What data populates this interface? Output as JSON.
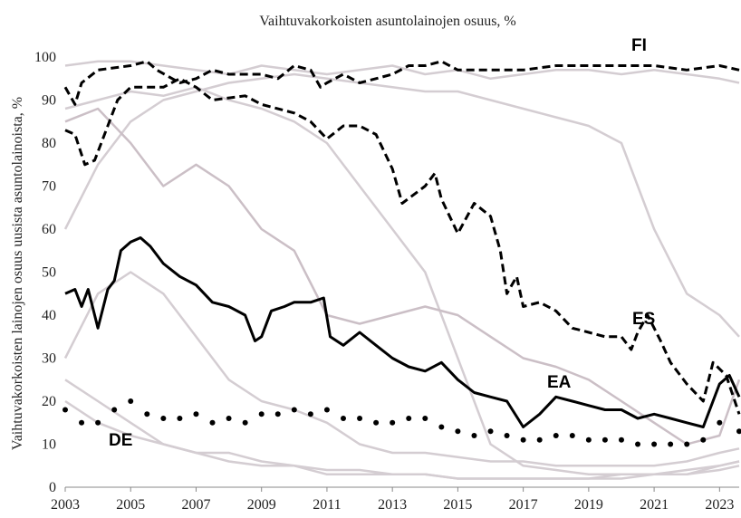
{
  "chart_data": {
    "type": "line",
    "title": "Vaihtuvakorkoisten asuntolainojen osuus, %",
    "ylabel": "Vaihtuvakorkoisten lainojen osuus uusista asuntolainoista, %",
    "xlim": [
      2003,
      2023.6
    ],
    "xticks": [
      2003,
      2005,
      2007,
      2009,
      2011,
      2013,
      2015,
      2017,
      2019,
      2021,
      2023
    ],
    "ylim": [
      0,
      100
    ],
    "yticks": [
      0,
      10,
      20,
      30,
      40,
      50,
      60,
      70,
      80,
      90,
      100
    ],
    "grid": false,
    "series": [
      {
        "color": "#d4cdd2",
        "style": "solid",
        "x": [
          2003,
          2004,
          2005,
          2006,
          2007,
          2008,
          2009,
          2010,
          2011,
          2012,
          2013,
          2014,
          2015,
          2016,
          2017,
          2018,
          2019,
          2020,
          2021,
          2022,
          2023,
          2023.6
        ],
        "values": [
          98,
          99,
          99,
          98,
          97,
          96,
          98,
          97,
          96,
          97,
          98,
          96,
          97,
          95,
          96,
          97,
          97,
          96,
          97,
          96,
          95,
          94
        ]
      },
      {
        "color": "#d4cdd2",
        "style": "solid",
        "x": [
          2003,
          2004,
          2005,
          2006,
          2007,
          2008,
          2009,
          2010,
          2011,
          2012,
          2013,
          2014,
          2015,
          2016,
          2017,
          2018,
          2019,
          2020,
          2021,
          2022,
          2023,
          2023.6
        ],
        "values": [
          88,
          90,
          92,
          91,
          93,
          90,
          88,
          85,
          80,
          70,
          60,
          50,
          30,
          10,
          5,
          4,
          3,
          3,
          3,
          3,
          4,
          5
        ]
      },
      {
        "color": "#d4cdd2",
        "style": "solid",
        "x": [
          2003,
          2004,
          2005,
          2006,
          2007,
          2008,
          2009,
          2010,
          2011,
          2012,
          2013,
          2014,
          2015,
          2016,
          2017,
          2018,
          2019,
          2020,
          2021,
          2022,
          2023,
          2023.6
        ],
        "values": [
          20,
          15,
          12,
          10,
          8,
          6,
          5,
          5,
          4,
          4,
          3,
          3,
          2,
          2,
          2,
          2,
          2,
          3,
          3,
          3,
          5,
          6
        ]
      },
      {
        "color": "#d4cdd2",
        "style": "solid",
        "x": [
          2003,
          2004,
          2005,
          2006,
          2007,
          2008,
          2009,
          2010,
          2011,
          2012,
          2013,
          2014,
          2015,
          2016,
          2017,
          2018,
          2019,
          2020,
          2021,
          2022,
          2023,
          2023.6
        ],
        "values": [
          60,
          75,
          85,
          90,
          92,
          94,
          95,
          96,
          95,
          94,
          93,
          92,
          92,
          90,
          88,
          86,
          84,
          80,
          60,
          45,
          40,
          35
        ]
      },
      {
        "color": "#d4cdd2",
        "style": "solid",
        "x": [
          2003,
          2004,
          2005,
          2006,
          2007,
          2008,
          2009,
          2010,
          2011,
          2012,
          2013,
          2014,
          2015,
          2016,
          2017,
          2018,
          2019,
          2020,
          2021,
          2022,
          2023,
          2023.6
        ],
        "values": [
          30,
          45,
          50,
          45,
          35,
          25,
          20,
          18,
          15,
          10,
          8,
          8,
          7,
          6,
          6,
          5,
          5,
          5,
          5,
          6,
          8,
          9
        ]
      },
      {
        "color": "#cbbfc6",
        "style": "solid",
        "x": [
          2003,
          2004,
          2005,
          2006,
          2007,
          2008,
          2009,
          2010,
          2011,
          2012,
          2013,
          2014,
          2015,
          2016,
          2017,
          2018,
          2019,
          2020,
          2021,
          2022,
          2023,
          2023.6
        ],
        "values": [
          85,
          88,
          80,
          70,
          75,
          70,
          60,
          55,
          40,
          38,
          40,
          42,
          40,
          35,
          30,
          28,
          25,
          20,
          15,
          10,
          12,
          25
        ]
      },
      {
        "color": "#d4cdd2",
        "style": "solid",
        "x": [
          2003,
          2004,
          2005,
          2006,
          2007,
          2008,
          2009,
          2010,
          2011,
          2012,
          2013,
          2014,
          2015,
          2016,
          2017,
          2018,
          2019,
          2020,
          2021,
          2022,
          2023,
          2023.6
        ],
        "values": [
          25,
          20,
          15,
          10,
          8,
          8,
          6,
          5,
          3,
          3,
          3,
          3,
          2,
          2,
          2,
          2,
          2,
          2,
          3,
          4,
          5,
          6
        ]
      },
      {
        "name": "FI",
        "color": "#000000",
        "style": "dashed",
        "x": [
          2003,
          2003.3,
          2003.5,
          2004,
          2005,
          2005.5,
          2005.8,
          2006.5,
          2007,
          2007.5,
          2008,
          2009,
          2009.5,
          2010,
          2010.5,
          2010.8,
          2011,
          2011.5,
          2012,
          2012.5,
          2013,
          2013.5,
          2014,
          2014.5,
          2015,
          2016,
          2017,
          2018,
          2019,
          2020,
          2021,
          2022,
          2023,
          2023.6
        ],
        "values": [
          93,
          89,
          94,
          97,
          98,
          99,
          97,
          94,
          95,
          97,
          96,
          96,
          95,
          98,
          97,
          93,
          94,
          96,
          94,
          95,
          96,
          98,
          98,
          99,
          97,
          97,
          97,
          98,
          98,
          98,
          98,
          97,
          98,
          97
        ]
      },
      {
        "name": "ES",
        "color": "#000000",
        "style": "dashed",
        "x": [
          2003,
          2003.3,
          2003.6,
          2003.9,
          2004.3,
          2004.6,
          2005,
          2006,
          2006.5,
          2007,
          2007.5,
          2008.5,
          2009,
          2010,
          2010.5,
          2011,
          2011.5,
          2012,
          2012.5,
          2013,
          2013.3,
          2014,
          2014.3,
          2014.5,
          2015,
          2015.5,
          2016,
          2016.3,
          2016.5,
          2016.8,
          2017,
          2017.5,
          2018,
          2018.5,
          2019,
          2019.5,
          2020,
          2020.3,
          2020.5,
          2020.8,
          2021.2,
          2021.5,
          2022,
          2022.5,
          2022.8,
          2023.2,
          2023.6
        ],
        "values": [
          83,
          82,
          75,
          76,
          84,
          90,
          93,
          93,
          95,
          93,
          90,
          91,
          89,
          87,
          85,
          81,
          84,
          84,
          82,
          74,
          66,
          70,
          73,
          67,
          59,
          66,
          63,
          55,
          45,
          49,
          42,
          43,
          41,
          37,
          36,
          35,
          35,
          32,
          36,
          40,
          34,
          29,
          24,
          20,
          29,
          26,
          17
        ]
      },
      {
        "name": "EA",
        "color": "#000000",
        "style": "solid",
        "x": [
          2003,
          2003.3,
          2003.5,
          2003.7,
          2004,
          2004.3,
          2004.5,
          2004.7,
          2005,
          2005.3,
          2005.6,
          2006,
          2006.5,
          2007,
          2007.5,
          2008,
          2008.5,
          2008.8,
          2009,
          2009.3,
          2009.7,
          2010,
          2010.5,
          2010.9,
          2011.1,
          2011.5,
          2012,
          2012.5,
          2013,
          2013.5,
          2014,
          2014.5,
          2015,
          2015.5,
          2016,
          2016.5,
          2017,
          2017.5,
          2018,
          2018.5,
          2019,
          2019.5,
          2020,
          2020.5,
          2021,
          2021.5,
          2022,
          2022.5,
          2022.8,
          2023,
          2023.3,
          2023.6
        ],
        "values": [
          45,
          46,
          42,
          46,
          37,
          46,
          48,
          55,
          57,
          58,
          56,
          52,
          49,
          47,
          43,
          42,
          40,
          34,
          35,
          41,
          42,
          43,
          43,
          44,
          35,
          33,
          36,
          33,
          30,
          28,
          27,
          29,
          25,
          22,
          21,
          20,
          14,
          17,
          21,
          20,
          19,
          18,
          18,
          16,
          17,
          16,
          15,
          14,
          20,
          24,
          26,
          21
        ]
      },
      {
        "name": "DE",
        "color": "#000000",
        "style": "dotted",
        "x": [
          2003,
          2003.5,
          2004,
          2004.5,
          2005,
          2005.5,
          2006,
          2006.5,
          2007,
          2007.5,
          2008,
          2008.5,
          2009,
          2009.5,
          2010,
          2010.5,
          2011,
          2011.5,
          2012,
          2012.5,
          2013,
          2013.5,
          2014,
          2014.5,
          2015,
          2015.5,
          2016,
          2016.5,
          2017,
          2017.5,
          2018,
          2018.5,
          2019,
          2019.5,
          2020,
          2020.5,
          2021,
          2021.5,
          2022,
          2022.5,
          2023,
          2023.6
        ],
        "values": [
          18,
          15,
          15,
          18,
          20,
          17,
          16,
          16,
          17,
          15,
          16,
          15,
          17,
          17,
          18,
          17,
          18,
          16,
          16,
          15,
          15,
          16,
          16,
          14,
          13,
          12,
          13,
          12,
          11,
          11,
          12,
          12,
          11,
          11,
          11,
          10,
          10,
          10,
          10,
          11,
          15,
          13
        ]
      }
    ]
  }
}
